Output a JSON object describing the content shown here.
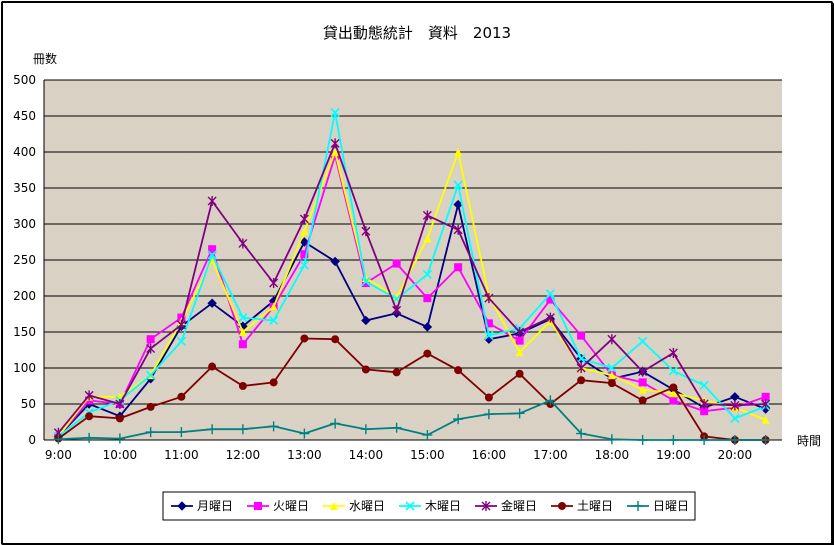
{
  "chart_data": {
    "type": "line",
    "title": "貸出動態統計　資料　2013",
    "ylabel": "冊数",
    "xlabel": "時間",
    "ylim": [
      0,
      500
    ],
    "yticks": [
      0,
      50,
      100,
      150,
      200,
      250,
      300,
      350,
      400,
      450,
      500
    ],
    "x_tick_labels": [
      "9:00",
      "10:00",
      "11:00",
      "12:00",
      "13:00",
      "14:00",
      "15:00",
      "16:00",
      "17:00",
      "18:00",
      "19:00",
      "20:00"
    ],
    "x": [
      "9:00",
      "9:30",
      "10:00",
      "10:30",
      "11:00",
      "11:30",
      "12:00",
      "12:30",
      "13:00",
      "13:30",
      "14:00",
      "14:30",
      "15:00",
      "15:30",
      "16:00",
      "16:30",
      "17:00",
      "17:30",
      "18:00",
      "18:30",
      "19:00",
      "19:30",
      "20:00",
      "20:30"
    ],
    "grid": "horizontal",
    "legend_position": "bottom",
    "series": [
      {
        "name": "月曜日",
        "color": "#000080",
        "marker": "diamond",
        "values": [
          5,
          50,
          33,
          85,
          158,
          190,
          158,
          193,
          275,
          248,
          166,
          176,
          157,
          327,
          140,
          148,
          168,
          113,
          85,
          95,
          70,
          45,
          60,
          43
        ]
      },
      {
        "name": "火曜日",
        "color": "#ff00ff",
        "marker": "square",
        "values": [
          5,
          55,
          50,
          140,
          170,
          265,
          133,
          185,
          258,
          395,
          218,
          245,
          197,
          240,
          162,
          138,
          195,
          145,
          90,
          80,
          55,
          40,
          45,
          60
        ]
      },
      {
        "name": "水曜日",
        "color": "#ffff00",
        "marker": "triangle",
        "values": [
          5,
          60,
          60,
          90,
          165,
          250,
          150,
          185,
          290,
          400,
          225,
          198,
          280,
          400,
          200,
          122,
          165,
          100,
          90,
          70,
          65,
          55,
          45,
          28
        ]
      },
      {
        "name": "木曜日",
        "color": "#00ffff",
        "marker": "x",
        "values": [
          5,
          38,
          55,
          90,
          137,
          257,
          170,
          166,
          243,
          455,
          220,
          196,
          230,
          354,
          145,
          155,
          203,
          113,
          100,
          137,
          96,
          76,
          30,
          47
        ]
      },
      {
        "name": "金曜日",
        "color": "#800080",
        "marker": "star",
        "values": [
          10,
          62,
          50,
          127,
          160,
          332,
          273,
          218,
          307,
          412,
          290,
          180,
          312,
          292,
          197,
          150,
          170,
          100,
          140,
          95,
          121,
          50,
          48,
          50
        ]
      },
      {
        "name": "土曜日",
        "color": "#800000",
        "marker": "circle",
        "values": [
          2,
          33,
          30,
          46,
          60,
          102,
          75,
          80,
          141,
          140,
          98,
          94,
          120,
          97,
          59,
          92,
          50,
          83,
          79,
          55,
          73,
          5,
          0,
          0
        ]
      },
      {
        "name": "日曜日",
        "color": "#008080",
        "marker": "plus",
        "values": [
          1,
          3,
          2,
          11,
          11,
          15,
          15,
          19,
          9,
          23,
          15,
          17,
          7,
          29,
          36,
          37,
          55,
          9,
          1,
          0,
          0,
          0,
          0,
          0
        ]
      }
    ]
  }
}
